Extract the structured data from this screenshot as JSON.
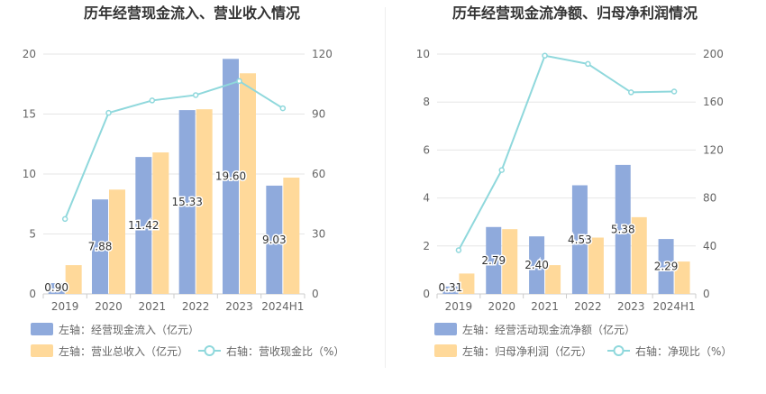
{
  "colors": {
    "bar_primary": "#8faadc",
    "bar_secondary": "#ffd99a",
    "line": "#8fd8dc",
    "grid": "#e6e6e6",
    "axis": "#cccccc",
    "text": "#666666",
    "title": "#333333"
  },
  "chart_data": [
    {
      "type": "bar",
      "title": "历年经营现金流入、营业收入情况",
      "categories": [
        "2019",
        "2020",
        "2021",
        "2022",
        "2023",
        "2024H1"
      ],
      "left_axis": {
        "ylim": [
          0,
          20
        ],
        "ticks": [
          0,
          5,
          10,
          15,
          20
        ]
      },
      "right_axis": {
        "ylim": [
          0,
          120
        ],
        "ticks": [
          0,
          30,
          60,
          90,
          120
        ]
      },
      "series": [
        {
          "name": "左轴：经营现金流入（亿元）",
          "kind": "bar",
          "axis": "left",
          "values": [
            0.9,
            7.88,
            11.42,
            15.33,
            19.6,
            9.03
          ],
          "labels": [
            "0.90",
            "7.88",
            "11.42",
            "15.33",
            "19.60",
            "9.03"
          ]
        },
        {
          "name": "左轴：营业总收入（亿元）",
          "kind": "bar",
          "axis": "left",
          "values": [
            2.4,
            8.7,
            11.8,
            15.4,
            18.4,
            9.7
          ]
        },
        {
          "name": "右轴：营收现金比（%）",
          "kind": "line",
          "axis": "right",
          "values": [
            37.5,
            90.6,
            96.8,
            99.5,
            106.5,
            92.9
          ]
        }
      ]
    },
    {
      "type": "bar",
      "title": "历年经营现金流净额、归母净利润情况",
      "categories": [
        "2019",
        "2020",
        "2021",
        "2022",
        "2023",
        "2024H1"
      ],
      "left_axis": {
        "ylim": [
          0,
          10
        ],
        "ticks": [
          0,
          2,
          4,
          6,
          8,
          10
        ]
      },
      "right_axis": {
        "ylim": [
          0,
          200
        ],
        "ticks": [
          0,
          40,
          80,
          120,
          160,
          200
        ]
      },
      "series": [
        {
          "name": "左轴：经营活动现金流净额（亿元）",
          "kind": "bar",
          "axis": "left",
          "values": [
            0.31,
            2.79,
            2.4,
            4.53,
            5.38,
            2.29
          ],
          "labels": [
            "0.31",
            "2.79",
            "2.40",
            "4.53",
            "5.38",
            "2.29"
          ]
        },
        {
          "name": "左轴：归母净利润（亿元）",
          "kind": "bar",
          "axis": "left",
          "values": [
            0.85,
            2.7,
            1.2,
            2.35,
            3.2,
            1.35
          ]
        },
        {
          "name": "右轴：净现比（%）",
          "kind": "line",
          "axis": "right",
          "values": [
            36.5,
            103.3,
            198.7,
            191.8,
            168.1,
            168.8
          ]
        }
      ]
    }
  ]
}
